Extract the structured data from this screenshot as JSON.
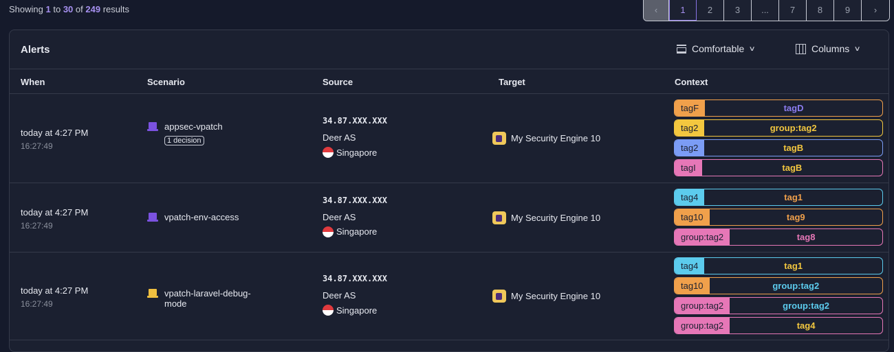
{
  "summary": {
    "prefix": "Showing",
    "from": "1",
    "to_word": "to",
    "to": "30",
    "of_word": "of",
    "total": "249",
    "suffix": "results"
  },
  "pagination": {
    "prev": "‹",
    "pages": [
      "1",
      "2",
      "3",
      "...",
      "7",
      "8",
      "9"
    ],
    "active": "1",
    "next": "›"
  },
  "panel": {
    "title": "Alerts",
    "density": "Comfortable",
    "columns": "Columns"
  },
  "headers": [
    "When",
    "Scenario",
    "Source",
    "Target",
    "Context"
  ],
  "colors": {
    "orange": "#f0a04b",
    "yellow": "#f3c73f",
    "blue": "#7b9cf5",
    "pink": "#e677b7",
    "cyan": "#5ccbed",
    "purple": "#8b7cf0"
  },
  "rows": [
    {
      "when": "today at 4:27 PM",
      "time": "16:27:49",
      "scenario": "appsec-vpatch",
      "icon_color": "#7b52e0",
      "badge": "1 decision",
      "ip": "34.87.XXX.XXX",
      "as": "Deer AS",
      "country": "Singapore",
      "target": "My Security Engine 10",
      "tags": [
        {
          "k": "tagF",
          "v": "tagD",
          "kc": "orange",
          "vc": "purple"
        },
        {
          "k": "tag2",
          "v": "group:tag2",
          "kc": "yellow",
          "vc": "yellow"
        },
        {
          "k": "tag2",
          "v": "tagB",
          "kc": "blue",
          "vc": "yellow"
        },
        {
          "k": "tagI",
          "v": "tagB",
          "kc": "pink",
          "vc": "yellow"
        }
      ]
    },
    {
      "when": "today at 4:27 PM",
      "time": "16:27:49",
      "scenario": "vpatch-env-access",
      "icon_color": "#7b52e0",
      "ip": "34.87.XXX.XXX",
      "as": "Deer AS",
      "country": "Singapore",
      "target": "My Security Engine 10",
      "tags": [
        {
          "k": "tag4",
          "v": "tag1",
          "kc": "cyan",
          "vc": "orange"
        },
        {
          "k": "tag10",
          "v": "tag9",
          "kc": "orange",
          "vc": "orange"
        },
        {
          "k": "group:tag2",
          "v": "tag8",
          "kc": "pink",
          "vc": "pink"
        }
      ]
    },
    {
      "when": "today at 4:27 PM",
      "time": "16:27:49",
      "scenario": "vpatch-laravel-debug-mode",
      "icon_color": "#f0c040",
      "ip": "34.87.XXX.XXX",
      "as": "Deer AS",
      "country": "Singapore",
      "target": "My Security Engine 10",
      "tags": [
        {
          "k": "tag4",
          "v": "tag1",
          "kc": "cyan",
          "vc": "yellow"
        },
        {
          "k": "tag10",
          "v": "group:tag2",
          "kc": "orange",
          "vc": "cyan"
        },
        {
          "k": "group:tag2",
          "v": "group:tag2",
          "kc": "pink",
          "vc": "cyan"
        },
        {
          "k": "group:tag2",
          "v": "tag4",
          "kc": "pink",
          "vc": "yellow"
        }
      ]
    }
  ]
}
